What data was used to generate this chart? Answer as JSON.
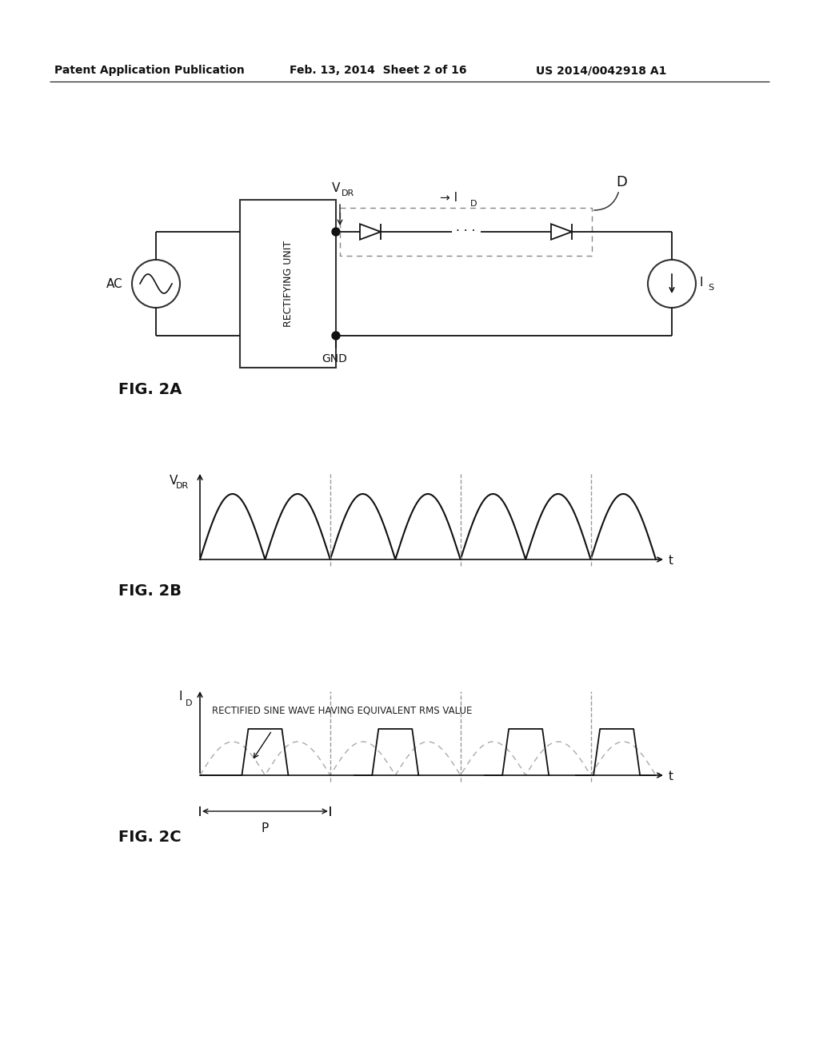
{
  "bg_color": "#ffffff",
  "header_left": "Patent Application Publication",
  "header_mid": "Feb. 13, 2014  Sheet 2 of 16",
  "header_right": "US 2014/0042918 A1",
  "fig2a_label": "FIG. 2A",
  "fig2b_label": "FIG. 2B",
  "fig2c_label": "FIG. 2C",
  "label_VDR_main": "V",
  "label_VDR_sub": "DR",
  "label_ID_main": "I",
  "label_ID_sub": "D",
  "label_D": "D",
  "label_AC": "AC",
  "label_IS_main": "I",
  "label_IS_sub": "S",
  "label_GND": "GND",
  "label_RECTIFYING": "RECTIFYING UNIT",
  "label_t": "t",
  "label_P": "P",
  "annotation": "RECTIFIED SINE WAVE HAVING EQUIVALENT RMS VALUE"
}
